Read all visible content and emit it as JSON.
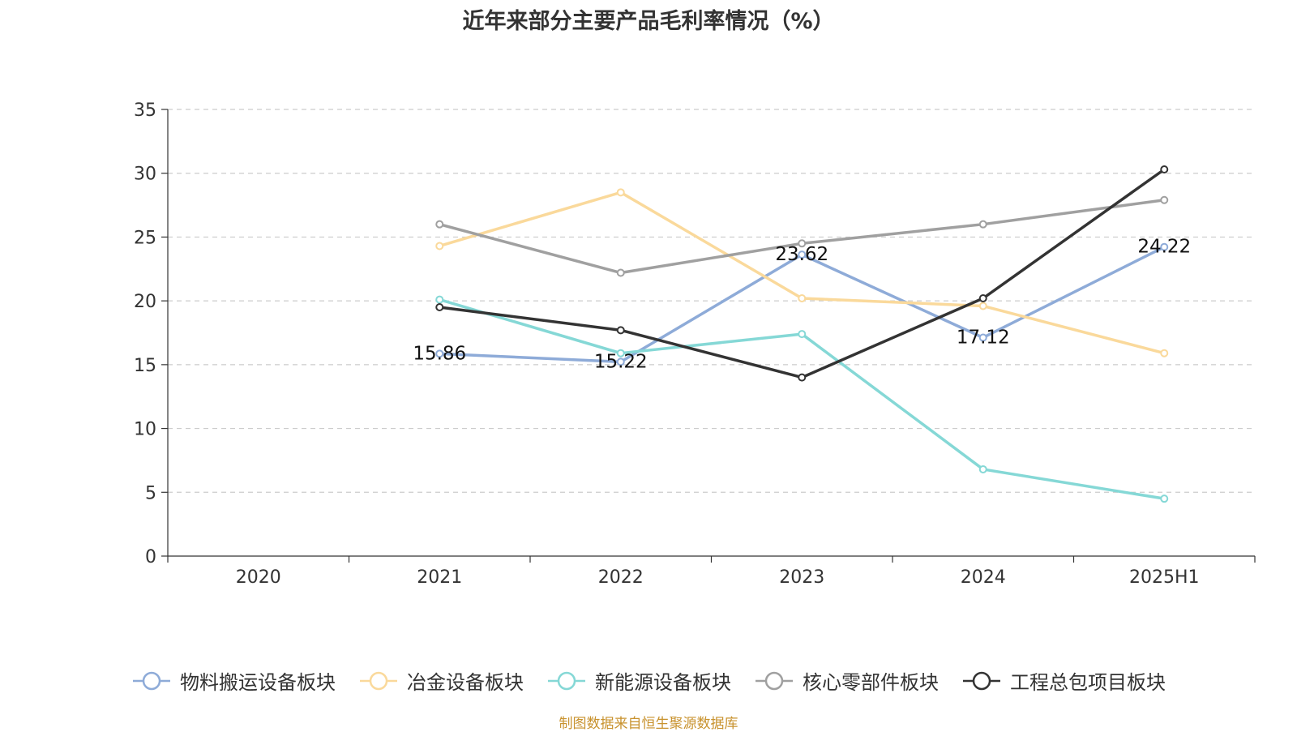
{
  "title": "近年来部分主要产品毛利率情况（%）",
  "source": "制图数据来自恒生聚源数据库",
  "chart_data": {
    "type": "line",
    "title": "近年来部分主要产品毛利率情况（%）",
    "categories": [
      "2020",
      "2021",
      "2022",
      "2023",
      "2024",
      "2025H1"
    ],
    "ylim": [
      0,
      35
    ],
    "yticks": [
      0,
      5,
      10,
      15,
      20,
      25,
      30,
      35
    ],
    "grid": true,
    "legend_position": "bottom",
    "series": [
      {
        "name": "物料搬运设备板块",
        "color": "#8eabd8",
        "values": [
          null,
          15.86,
          15.22,
          23.62,
          17.12,
          24.22
        ],
        "labels": [
          null,
          "15.86",
          "15.22",
          "23.62",
          "17.12",
          "24.22"
        ]
      },
      {
        "name": "冶金设备板块",
        "color": "#fad99b",
        "values": [
          null,
          24.3,
          28.5,
          20.2,
          19.6,
          15.9
        ]
      },
      {
        "name": "新能源设备板块",
        "color": "#85d8d6",
        "values": [
          null,
          20.1,
          15.9,
          17.4,
          6.8,
          4.5
        ]
      },
      {
        "name": "核心零部件板块",
        "color": "#a0a0a0",
        "values": [
          null,
          26.0,
          22.2,
          24.5,
          26.0,
          27.9
        ]
      },
      {
        "name": "工程总包项目板块",
        "color": "#333333",
        "values": [
          null,
          19.5,
          17.7,
          14.0,
          20.2,
          30.3
        ]
      }
    ]
  }
}
